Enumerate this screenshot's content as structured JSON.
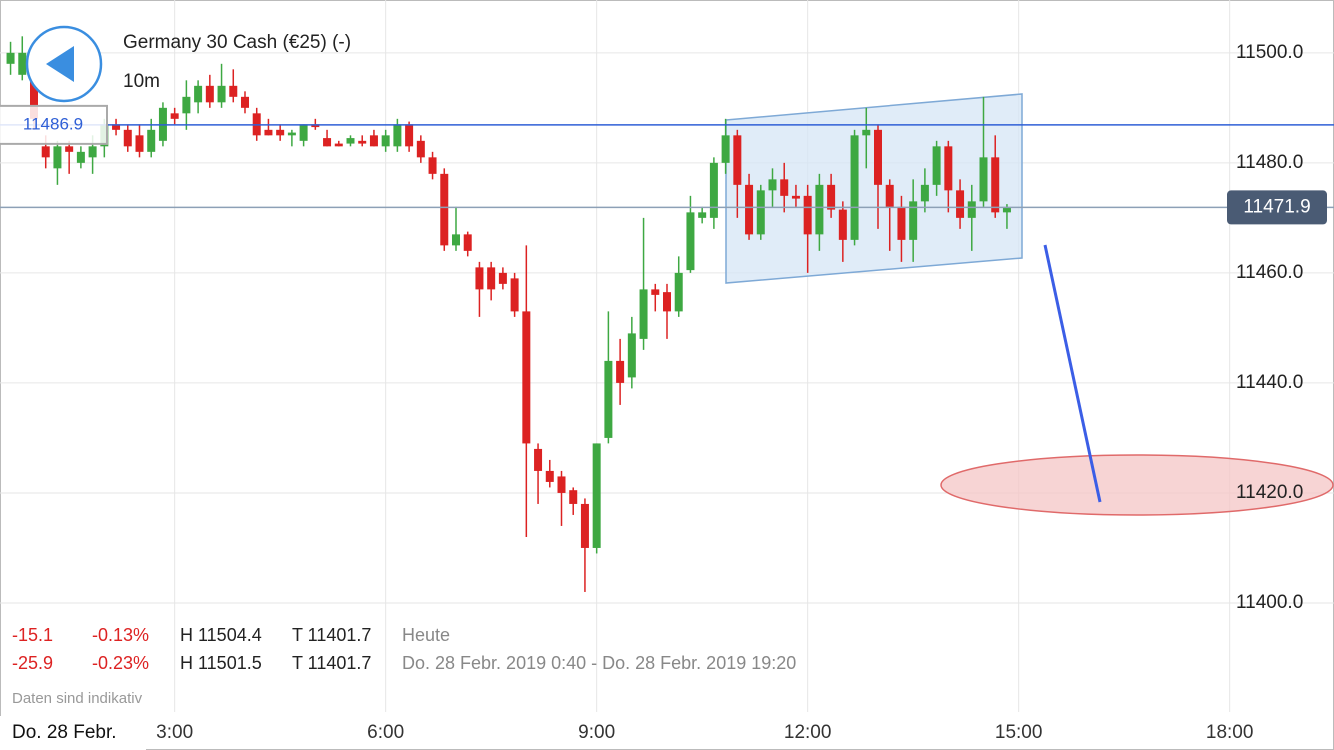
{
  "chart_data": {
    "type": "candlestick",
    "title": "Germany 30 Cash (€25) (-)",
    "interval": "10m",
    "date_label": "Do. 28 Febr.",
    "note": "Daten sind indikativ",
    "up_color": "#3ea842",
    "down_color": "#dc2222",
    "grid": true,
    "x": [
      40,
      50,
      60,
      70,
      80,
      90,
      100,
      110,
      120,
      130,
      140,
      150,
      160,
      170,
      180,
      190,
      200,
      210,
      220,
      230,
      240,
      250,
      260,
      270,
      280,
      290,
      300,
      310,
      320,
      330,
      340,
      350,
      360,
      370,
      380,
      390,
      400,
      410,
      420,
      430,
      440,
      450,
      460,
      470,
      480,
      490,
      500,
      510,
      520,
      530,
      540,
      550,
      560,
      570,
      580,
      590,
      600,
      610,
      620,
      630,
      640,
      650,
      660,
      670,
      680,
      690,
      700,
      710,
      720,
      730,
      740,
      750,
      760,
      770,
      780,
      790,
      800,
      810,
      820,
      830,
      840,
      850,
      860,
      870,
      880,
      890
    ],
    "open": [
      11498,
      11496,
      11497,
      11483,
      11479,
      11483,
      11480,
      11481,
      11483,
      11487,
      11486,
      11485,
      11482,
      11484,
      11489,
      11489,
      11491,
      11494,
      11491,
      11494,
      11492,
      11489,
      11486,
      11486,
      11485,
      11484,
      11487,
      11484.5,
      11483.5,
      11483.5,
      11484,
      11485,
      11483,
      11483,
      11487,
      11484,
      11481,
      11478,
      11465,
      11467,
      11461,
      11461,
      11460,
      11459,
      11453,
      11428,
      11424,
      11423,
      11420.5,
      11418,
      11410,
      11430,
      11444,
      11441,
      11448,
      11457,
      11456.5,
      11453,
      11460.5,
      11470,
      11470,
      11480,
      11485,
      11476,
      11467,
      11475,
      11477,
      11474,
      11474,
      11467,
      11476,
      11471.5,
      11466,
      11485,
      11486,
      11476,
      11472,
      11466,
      11473,
      11476,
      11483,
      11475,
      11470,
      11473,
      11481,
      11471
    ],
    "high": [
      11502,
      11503,
      11499,
      11485,
      11484,
      11484,
      11483,
      11485,
      11488,
      11488,
      11487,
      11487,
      11488,
      11491,
      11490,
      11495,
      11495,
      11496,
      11498,
      11497,
      11493,
      11490,
      11488,
      11487,
      11486,
      11487,
      11488,
      11486,
      11484,
      11485,
      11485,
      11486,
      11486,
      11488,
      11487.5,
      11485,
      11482,
      11479,
      11472,
      11467.5,
      11462,
      11462,
      11461,
      11460,
      11465,
      11429,
      11426,
      11424,
      11421,
      11419,
      11429,
      11453,
      11448,
      11452,
      11470,
      11458,
      11458,
      11463,
      11474,
      11472,
      11481,
      11488,
      11486,
      11478,
      11476,
      11479,
      11480,
      11476,
      11476,
      11478,
      11478,
      11473,
      11486,
      11490,
      11487,
      11477,
      11474,
      11477,
      11479,
      11484,
      11484,
      11477,
      11476,
      11492,
      11485,
      11472.5
    ],
    "low": [
      11496,
      11495,
      11486,
      11479,
      11476,
      11478,
      11479,
      11478,
      11481,
      11485,
      11482,
      11481,
      11481,
      11483,
      11487,
      11486,
      11489,
      11490,
      11490,
      11491,
      11489,
      11484,
      11485,
      11484,
      11483,
      11483,
      11486,
      11483,
      11483,
      11483,
      11483,
      11483,
      11482,
      11482,
      11482,
      11480,
      11477,
      11464,
      11464,
      11463,
      11452,
      11455,
      11457,
      11452,
      11412,
      11418,
      11421,
      11414,
      11416,
      11402,
      11409,
      11429,
      11436,
      11439,
      11446,
      11453,
      11448,
      11452,
      11460,
      11469,
      11468,
      11478,
      11470,
      11466,
      11466,
      11472,
      11471,
      11472,
      11460,
      11464,
      11470,
      11462,
      11465,
      11479,
      11468,
      11464,
      11462,
      11462,
      11471,
      11474,
      11471,
      11468,
      11464,
      11472,
      11470,
      11468
    ],
    "close": [
      11500,
      11500,
      11488,
      11481,
      11483,
      11482,
      11482,
      11483,
      11487,
      11486,
      11483,
      11482,
      11486,
      11490,
      11488,
      11492,
      11494,
      11491,
      11494,
      11492,
      11490,
      11485,
      11485,
      11485,
      11485.5,
      11487,
      11486.5,
      11483,
      11483,
      11484.5,
      11483.5,
      11483,
      11485,
      11487,
      11483,
      11481,
      11478,
      11465,
      11467,
      11464,
      11457,
      11457,
      11458,
      11453,
      11429,
      11424,
      11422,
      11420,
      11418,
      11410,
      11429,
      11444,
      11440,
      11449,
      11457,
      11456,
      11453,
      11460,
      11471,
      11471,
      11480,
      11485,
      11476,
      11467,
      11475,
      11477,
      11474,
      11473.5,
      11467,
      11476,
      11471.5,
      11466,
      11485,
      11486,
      11476,
      11472,
      11466,
      11473,
      11476,
      11483,
      11475,
      11470,
      11473,
      11481,
      11471,
      11471.9
    ],
    "xlim": [
      31,
      1169
    ],
    "ylim": [
      11380,
      11509.6
    ],
    "xticks": [
      {
        "value": 180,
        "label": "3:00"
      },
      {
        "value": 360,
        "label": "6:00"
      },
      {
        "value": 540,
        "label": "9:00"
      },
      {
        "value": 720,
        "label": "12:00"
      },
      {
        "value": 900,
        "label": "15:00"
      },
      {
        "value": 1080,
        "label": "18:00"
      }
    ],
    "yticks": [
      {
        "value": 11400,
        "label": "11400.0"
      },
      {
        "value": 11420,
        "label": "11420.0"
      },
      {
        "value": 11440,
        "label": "11440.0"
      },
      {
        "value": 11460,
        "label": "11460.0"
      },
      {
        "value": 11480,
        "label": "11480.0"
      },
      {
        "value": 11500,
        "label": "11500.0"
      }
    ],
    "price_lines": [
      {
        "value": 11486.9,
        "color": "#2f5fd6"
      },
      {
        "value": 11471.9,
        "color": "#8da0b6"
      }
    ],
    "stats": [
      [
        "-15.1",
        "-0.13%",
        "H 11504.4",
        "T 11401.7",
        "Heute"
      ],
      [
        "-25.9",
        "-0.23%",
        "H 11501.5",
        "T 11401.7",
        "Do. 28 Febr. 2019 0:40 - Do. 28 Febr. 2019 19:20"
      ]
    ]
  }
}
